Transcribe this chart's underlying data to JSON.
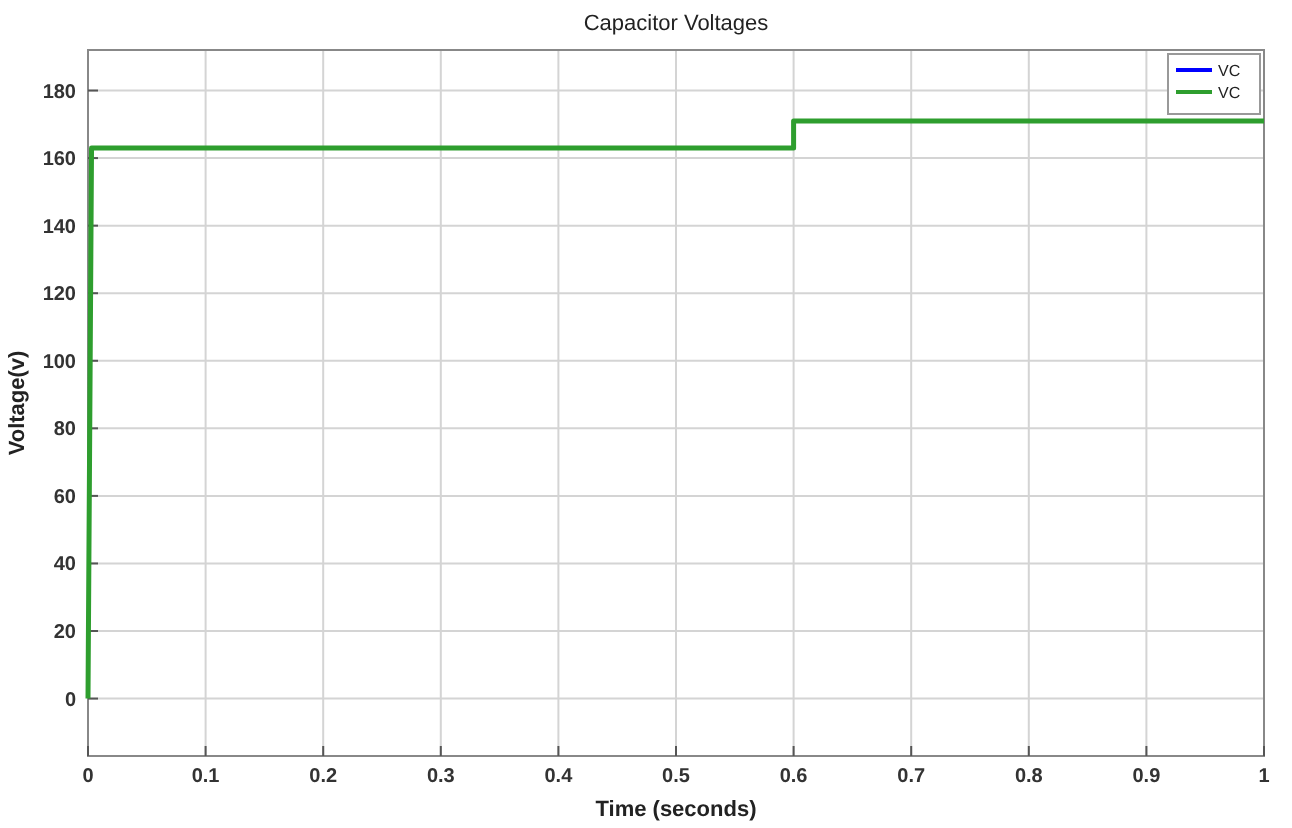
{
  "chart_data": {
    "type": "line",
    "title": "Capacitor Voltages",
    "xlabel": "Time (seconds)",
    "ylabel": "Voltage(v)",
    "x": [
      0,
      0.003,
      0.6,
      0.6,
      1
    ],
    "series": [
      {
        "name": "VC",
        "color": "#0000ff",
        "values": [
          null,
          null,
          null,
          null,
          null
        ]
      },
      {
        "name": "VC",
        "color": "#2e9e2e",
        "values": [
          0,
          163,
          163,
          171,
          171
        ]
      }
    ],
    "xlim": [
      0,
      1
    ],
    "xticks": [
      0,
      0.1,
      0.2,
      0.3,
      0.4,
      0.5,
      0.6,
      0.7,
      0.8,
      0.9,
      1
    ],
    "ylim": [
      -17,
      192
    ],
    "yticks": [
      0,
      20,
      40,
      60,
      80,
      100,
      120,
      140,
      160,
      180
    ],
    "grid": true,
    "legend": "top right",
    "line_style": "solid"
  }
}
